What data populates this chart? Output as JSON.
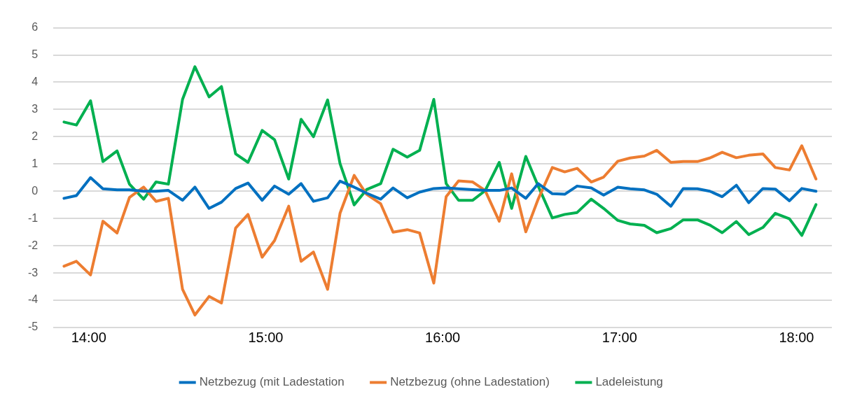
{
  "chart_data": {
    "type": "line",
    "x": [
      13.86,
      13.93,
      14.01,
      14.08,
      14.16,
      14.23,
      14.31,
      14.38,
      14.45,
      14.53,
      14.6,
      14.68,
      14.75,
      14.83,
      14.9,
      14.98,
      15.05,
      15.13,
      15.2,
      15.27,
      15.35,
      15.42,
      15.5,
      15.57,
      15.65,
      15.72,
      15.8,
      15.87,
      15.95,
      16.02,
      16.09,
      16.17,
      16.24,
      16.32,
      16.39,
      16.47,
      16.54,
      16.62,
      16.69,
      16.76,
      16.84,
      16.91,
      16.99,
      17.06,
      17.14,
      17.21,
      17.29,
      17.36,
      17.44,
      17.51,
      17.58,
      17.66,
      17.73,
      17.81,
      17.88,
      17.96,
      18.03,
      18.11
    ],
    "series": [
      {
        "name": "Netzbezug (mit Ladestation",
        "color": "#0070c0",
        "values": [
          -0.26,
          -0.16,
          0.5,
          0.09,
          0.05,
          0.05,
          0,
          0,
          0.03,
          -0.33,
          0.15,
          -0.63,
          -0.4,
          0.1,
          0.3,
          -0.33,
          0.19,
          -0.11,
          0.28,
          -0.37,
          -0.24,
          0.37,
          0.15,
          -0.07,
          -0.29,
          0.12,
          -0.24,
          -0.03,
          0.1,
          0.12,
          0.09,
          0.06,
          0.03,
          0.03,
          0.12,
          -0.26,
          0.28,
          -0.09,
          -0.11,
          0.19,
          0.12,
          -0.14,
          0.15,
          0.09,
          0.05,
          -0.11,
          -0.55,
          0.1,
          0.09,
          0,
          -0.2,
          0.22,
          -0.42,
          0.1,
          0.08,
          -0.35,
          0.1,
          0
        ]
      },
      {
        "name": "Netzbezug (ohne Ladestation)",
        "color": "#ed7d31",
        "values": [
          -2.75,
          -2.57,
          -3.07,
          -1.1,
          -1.53,
          -0.23,
          0.15,
          -0.37,
          -0.26,
          -3.6,
          -4.54,
          -3.86,
          -4.1,
          -1.35,
          -0.85,
          -2.42,
          -1.81,
          -0.55,
          -2.57,
          -2.23,
          -3.6,
          -0.81,
          0.58,
          -0.11,
          -0.46,
          -1.5,
          -1.41,
          -1.53,
          -3.37,
          -0.2,
          0.38,
          0.34,
          0.03,
          -1.1,
          0.64,
          -1.49,
          -0.29,
          0.87,
          0.71,
          0.84,
          0.34,
          0.52,
          1.1,
          1.22,
          1.29,
          1.5,
          1.06,
          1.09,
          1.09,
          1.22,
          1.43,
          1.23,
          1.32,
          1.37,
          0.87,
          0.78,
          1.67,
          0.45
        ]
      },
      {
        "name": "Ladeleistung",
        "color": "#00b050",
        "values": [
          2.54,
          2.43,
          3.32,
          1.09,
          1.48,
          0.26,
          -0.29,
          0.34,
          0.26,
          3.37,
          4.57,
          3.46,
          3.84,
          1.37,
          1.06,
          2.23,
          1.89,
          0.45,
          2.64,
          2.0,
          3.35,
          1.02,
          -0.5,
          0.06,
          0.28,
          1.54,
          1.25,
          1.5,
          3.37,
          0.28,
          -0.33,
          -0.33,
          0.02,
          1.06,
          -0.63,
          1.28,
          0.19,
          -0.98,
          -0.85,
          -0.78,
          -0.29,
          -0.63,
          -1.07,
          -1.2,
          -1.25,
          -1.52,
          -1.37,
          -1.05,
          -1.05,
          -1.24,
          -1.52,
          -1.11,
          -1.59,
          -1.33,
          -0.81,
          -1.01,
          -1.62,
          -0.49
        ]
      }
    ],
    "xlim": [
      13.8,
      18.2
    ],
    "xticks": [
      {
        "value": 14,
        "label": "14:00"
      },
      {
        "value": 15,
        "label": "15:00"
      },
      {
        "value": 16,
        "label": "16:00"
      },
      {
        "value": 17,
        "label": "17:00"
      },
      {
        "value": 18,
        "label": "18:00"
      }
    ],
    "ylim": [
      -5,
      6
    ],
    "yticks": [
      -5,
      -4,
      -3,
      -2,
      -1,
      0,
      1,
      2,
      3,
      4,
      5,
      6
    ],
    "grid": "y",
    "legend": "bottom",
    "marker": "none",
    "line_style": "solid"
  }
}
